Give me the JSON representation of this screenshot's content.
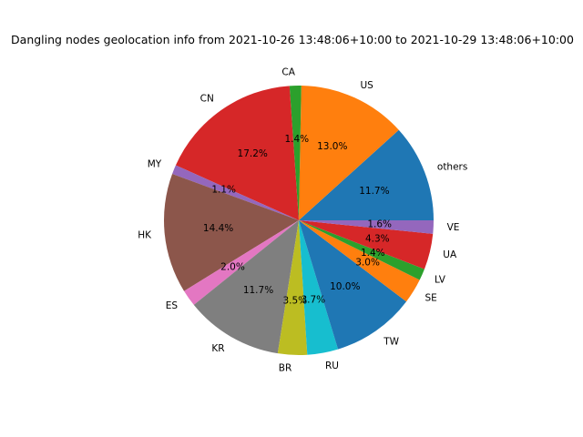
{
  "chart_data": {
    "type": "pie",
    "title": "Dangling nodes geolocation info from 2021-10-26 13:48:06+10:00 to 2021-10-29 13:48:06+10:00",
    "start_angle_deg": 0,
    "direction": "counterclockwise",
    "slices": [
      {
        "label": "others",
        "value": 11.7,
        "pct_label": "11.7%",
        "color": "#1f77b4"
      },
      {
        "label": "US",
        "value": 13.0,
        "pct_label": "13.0%",
        "color": "#ff7f0e"
      },
      {
        "label": "CA",
        "value": 1.4,
        "pct_label": "1.4%",
        "color": "#2ca02c"
      },
      {
        "label": "CN",
        "value": 17.2,
        "pct_label": "17.2%",
        "color": "#d62728"
      },
      {
        "label": "MY",
        "value": 1.1,
        "pct_label": "1.1%",
        "color": "#9467bd"
      },
      {
        "label": "HK",
        "value": 14.4,
        "pct_label": "14.4%",
        "color": "#8c564b"
      },
      {
        "label": "ES",
        "value": 2.0,
        "pct_label": "2.0%",
        "color": "#e377c2"
      },
      {
        "label": "KR",
        "value": 11.7,
        "pct_label": "11.7%",
        "color": "#7f7f7f"
      },
      {
        "label": "BR",
        "value": 3.5,
        "pct_label": "3.5%",
        "color": "#bcbd22"
      },
      {
        "label": "RU",
        "value": 3.7,
        "pct_label": "3.7%",
        "color": "#17becf"
      },
      {
        "label": "TW",
        "value": 10.0,
        "pct_label": "10.0%",
        "color": "#1f77b4"
      },
      {
        "label": "SE",
        "value": 3.0,
        "pct_label": "3.0%",
        "color": "#ff7f0e"
      },
      {
        "label": "LV",
        "value": 1.4,
        "pct_label": "1.4%",
        "color": "#2ca02c"
      },
      {
        "label": "UA",
        "value": 4.3,
        "pct_label": "4.3%",
        "color": "#d62728"
      },
      {
        "label": "VE",
        "value": 1.6,
        "pct_label": "1.6%",
        "color": "#9467bd"
      }
    ]
  }
}
